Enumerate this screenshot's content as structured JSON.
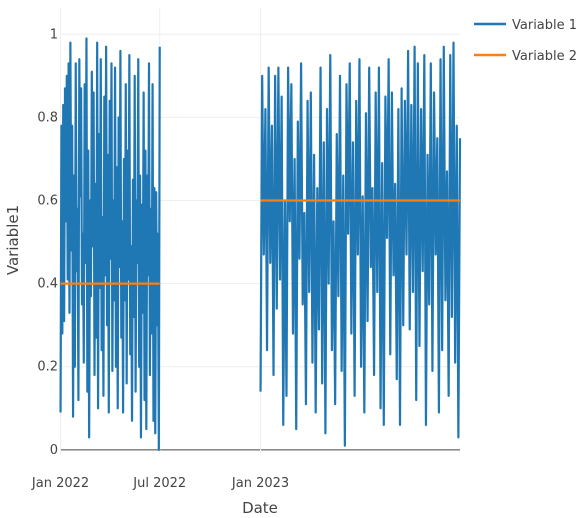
{
  "chart_data": {
    "type": "line",
    "xlabel": "Date",
    "ylabel": "Variable1",
    "x_ticks": [
      "Jan 2022",
      "Jul 2022",
      "Jan 2023"
    ],
    "x_tick_dates": [
      "2022-01-01",
      "2022-07-01",
      "2023-01-01"
    ],
    "xlim": [
      "2021-12-31",
      "2023-12-31"
    ],
    "y_ticks": [
      "0",
      "0.2",
      "0.4",
      "0.6",
      "0.8",
      "1"
    ],
    "y_tick_values": [
      0,
      0.2,
      0.4,
      0.6,
      0.8,
      1
    ],
    "ylim": [
      -0.01,
      1.02
    ],
    "grid": true,
    "legend_position": "top-right",
    "colors": {
      "variable_1": "#1f77b4",
      "variable_2": "#ff7f0e",
      "grid": "#eeeeee",
      "zero_line": "#444444"
    },
    "series": [
      {
        "name": "Variable 1",
        "segments": [
          {
            "start": "2022-01-01",
            "end": "2022-07-01",
            "values": [
              0.09,
              0.78,
              0.28,
              0.83,
              0.31,
              0.87,
              0.55,
              0.9,
              0.41,
              0.93,
              0.33,
              0.98,
              0.48,
              0.78,
              0.08,
              0.66,
              0.2,
              0.93,
              0.43,
              0.58,
              0.12,
              0.94,
              0.61,
              0.87,
              0.35,
              0.52,
              0.21,
              0.88,
              0.45,
              0.99,
              0.14,
              0.72,
              0.03,
              0.6,
              0.37,
              0.91,
              0.49,
              0.86,
              0.18,
              0.64,
              0.27,
              0.98,
              0.1,
              0.76,
              0.39,
              0.94,
              0.24,
              0.56,
              0.13,
              0.85,
              0.42,
              0.97,
              0.3,
              0.71,
              0.09,
              0.84,
              0.46,
              0.93,
              0.19,
              0.6,
              0.36,
              0.92,
              0.2,
              0.68,
              0.1,
              0.8,
              0.44,
              0.96,
              0.27,
              0.55,
              0.09,
              0.7,
              0.36,
              0.88,
              0.16,
              0.72,
              0.41,
              0.95,
              0.23,
              0.49,
              0.07,
              0.65,
              0.32,
              0.9,
              0.14,
              0.6,
              0.45,
              0.94,
              0.2,
              0.66,
              0.03,
              0.59,
              0.33,
              0.86,
              0.12,
              0.72,
              0.05,
              0.66,
              0.42,
              0.93,
              0.18,
              0.58,
              0.28,
              0.88,
              0.07,
              0.63,
              0.04,
              0.62,
              0.3,
              0.52,
              0.0,
              0.97
            ]
          },
          {
            "start": "2023-01-01",
            "end": "2023-12-31",
            "values": [
              0.14,
              0.9,
              0.47,
              0.82,
              0.24,
              0.92,
              0.45,
              0.78,
              0.18,
              0.9,
              0.34,
              0.92,
              0.41,
              0.85,
              0.06,
              0.6,
              0.13,
              0.92,
              0.55,
              0.88,
              0.28,
              0.7,
              0.05,
              0.79,
              0.46,
              0.93,
              0.35,
              0.57,
              0.11,
              0.84,
              0.38,
              0.86,
              0.21,
              0.71,
              0.09,
              0.63,
              0.29,
              0.92,
              0.16,
              0.74,
              0.04,
              0.82,
              0.4,
              0.95,
              0.24,
              0.55,
              0.11,
              0.76,
              0.37,
              0.9,
              0.19,
              0.66,
              0.01,
              0.88,
              0.52,
              0.93,
              0.28,
              0.74,
              0.13,
              0.84,
              0.47,
              0.94,
              0.2,
              0.61,
              0.09,
              0.81,
              0.31,
              0.92,
              0.44,
              0.63,
              0.18,
              0.86,
              0.38,
              0.92,
              0.1,
              0.69,
              0.06,
              0.85,
              0.51,
              0.94,
              0.23,
              0.86,
              0.42,
              0.64,
              0.17,
              0.82,
              0.06,
              0.87,
              0.3,
              0.84,
              0.47,
              0.96,
              0.29,
              0.83,
              0.38,
              0.97,
              0.12,
              0.93,
              0.25,
              0.82,
              0.43,
              0.95,
              0.06,
              0.71,
              0.35,
              0.93,
              0.19,
              0.86,
              0.47,
              0.75,
              0.09,
              0.94,
              0.24,
              0.97,
              0.36,
              0.67,
              0.13,
              0.95,
              0.32,
              0.98,
              0.21,
              0.78,
              0.03,
              0.75
            ]
          }
        ]
      },
      {
        "name": "Variable 2",
        "segments": [
          {
            "start": "2022-01-01",
            "end": "2022-07-01",
            "values": [
              0.4,
              0.4
            ]
          },
          {
            "start": "2023-01-01",
            "end": "2023-12-31",
            "values": [
              0.6,
              0.6
            ]
          }
        ]
      }
    ]
  }
}
